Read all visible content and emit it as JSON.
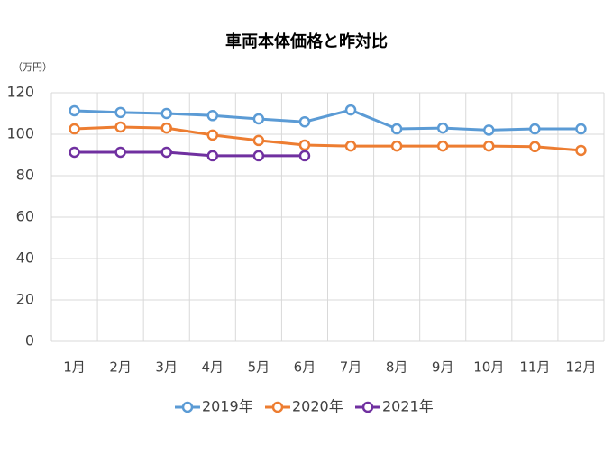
{
  "chart_data": {
    "type": "line",
    "title": "車両本体価格と昨対比",
    "y_unit": "（万円）",
    "categories": [
      "1月",
      "2月",
      "3月",
      "4月",
      "5月",
      "6月",
      "7月",
      "8月",
      "9月",
      "10月",
      "11月",
      "12月"
    ],
    "series": [
      {
        "name": "2019年",
        "color": "#5b9bd5",
        "values": [
          111.3,
          110.5,
          110,
          109,
          107.4,
          106,
          111.7,
          102.6,
          103,
          102,
          102.6,
          102.6
        ]
      },
      {
        "name": "2020年",
        "color": "#ed7d31",
        "values": [
          102.6,
          103.5,
          103,
          99.6,
          97,
          94.8,
          94.3,
          94.3,
          94.3,
          94.3,
          94,
          92.2
        ]
      },
      {
        "name": "2021年",
        "color": "#7030a0",
        "values": [
          91.3,
          91.3,
          91.3,
          89.6,
          89.6,
          89.6,
          null,
          null,
          null,
          null,
          null,
          null
        ]
      }
    ],
    "ylim": [
      0,
      120
    ],
    "yticks": [
      0,
      20,
      40,
      60,
      80,
      100,
      120
    ],
    "grid": true,
    "legend": "bottom"
  }
}
